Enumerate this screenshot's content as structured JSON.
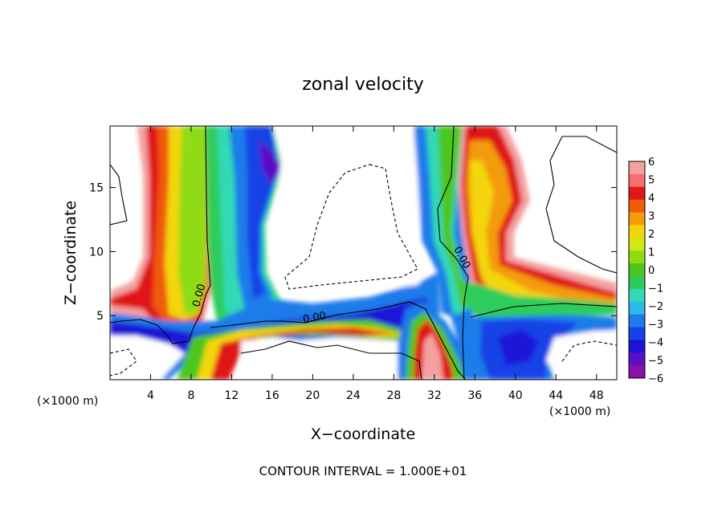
{
  "chart_data": {
    "type": "heatmap",
    "title": "zonal velocity",
    "xlabel": "X−coordinate",
    "ylabel": "Z−coordinate",
    "x_unit_left": "(×1000 m)",
    "x_unit_right": "(×1000 m)",
    "footer": "CONTOUR INTERVAL = 1.000E+01",
    "xlim": [
      0,
      50
    ],
    "ylim": [
      0,
      19.8
    ],
    "x_ticks": [
      {
        "value": 4,
        "label": "4"
      },
      {
        "value": 8,
        "label": "8"
      },
      {
        "value": 12,
        "label": "12"
      },
      {
        "value": 16,
        "label": "16"
      },
      {
        "value": 20,
        "label": "20"
      },
      {
        "value": 24,
        "label": "24"
      },
      {
        "value": 28,
        "label": "28"
      },
      {
        "value": 32,
        "label": "32"
      },
      {
        "value": 36,
        "label": "36"
      },
      {
        "value": 40,
        "label": "40"
      },
      {
        "value": 44,
        "label": "44"
      },
      {
        "value": 48,
        "label": "48"
      }
    ],
    "y_ticks": [
      {
        "value": 5,
        "label": "5"
      },
      {
        "value": 10,
        "label": "10"
      },
      {
        "value": 15,
        "label": "15"
      }
    ],
    "colorbar": {
      "min": -6,
      "max": 6,
      "ticks": [
        "6",
        "5",
        "4",
        "3",
        "2",
        "1",
        "0",
        "−1",
        "−2",
        "−3",
        "−4",
        "−5",
        "−6"
      ],
      "colors": [
        "#F4A0A0",
        "#F47070",
        "#E01818",
        "#F05A0A",
        "#F39B0C",
        "#F3D50E",
        "#CFE816",
        "#8FDB12",
        "#4EC61E",
        "#2DCC5A",
        "#31D9B4",
        "#2FB8E8",
        "#1E7BEA",
        "#1642E6",
        "#1E14D8",
        "#5A10C6",
        "#8A10A6"
      ]
    },
    "contour_labels": [
      "0.00",
      "0.00",
      "0.00"
    ],
    "contour_interval": 10,
    "grid": false,
    "notes_values": "Field values in colorbar units: broad positive (red/orange) column near x=4-7 km, negative (blue) jet x=12-16 km above z=5, zero-contour near x=9-10 km, negative band along z~4-6 km, strong positive core near x=31-33 km low levels, positive plume x=34-40 km aloft, negative band x=30-35 km aloft."
  }
}
